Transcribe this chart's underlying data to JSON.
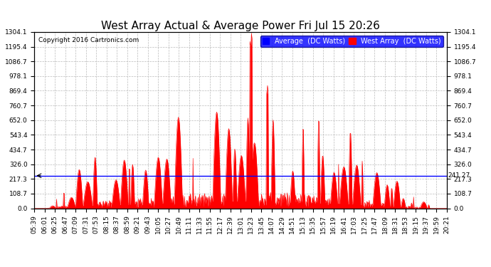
{
  "title": "West Array Actual & Average Power Fri Jul 15 20:26",
  "copyright": "Copyright 2016 Cartronics.com",
  "legend_avg_label": "Average  (DC Watts)",
  "legend_west_label": "West Array  (DC Watts)",
  "avg_line_value": 241.27,
  "avg_line_label": "241.27",
  "ymax": 1304.1,
  "yticks": [
    0.0,
    108.7,
    217.3,
    326.0,
    434.7,
    543.4,
    652.0,
    760.7,
    869.4,
    978.1,
    1086.7,
    1195.4,
    1304.1
  ],
  "background_color": "#ffffff",
  "fill_color": "#ff0000",
  "avg_line_color": "#0000ff",
  "grid_color": "#bbbbbb",
  "title_fontsize": 11,
  "copyright_fontsize": 6.5,
  "tick_fontsize": 6.5,
  "legend_fontsize": 7,
  "x_tick_labels": [
    "05:39",
    "06:01",
    "06:25",
    "06:47",
    "07:09",
    "07:31",
    "07:53",
    "08:15",
    "08:37",
    "08:59",
    "09:21",
    "09:43",
    "10:05",
    "10:27",
    "10:49",
    "11:11",
    "11:33",
    "11:55",
    "12:17",
    "12:39",
    "13:01",
    "13:23",
    "13:45",
    "14:07",
    "14:29",
    "14:51",
    "15:13",
    "15:35",
    "15:57",
    "16:19",
    "16:41",
    "17:03",
    "17:25",
    "17:47",
    "18:09",
    "18:31",
    "18:53",
    "19:15",
    "19:37",
    "19:59",
    "20:21"
  ],
  "n_points": 820,
  "seed": 123
}
